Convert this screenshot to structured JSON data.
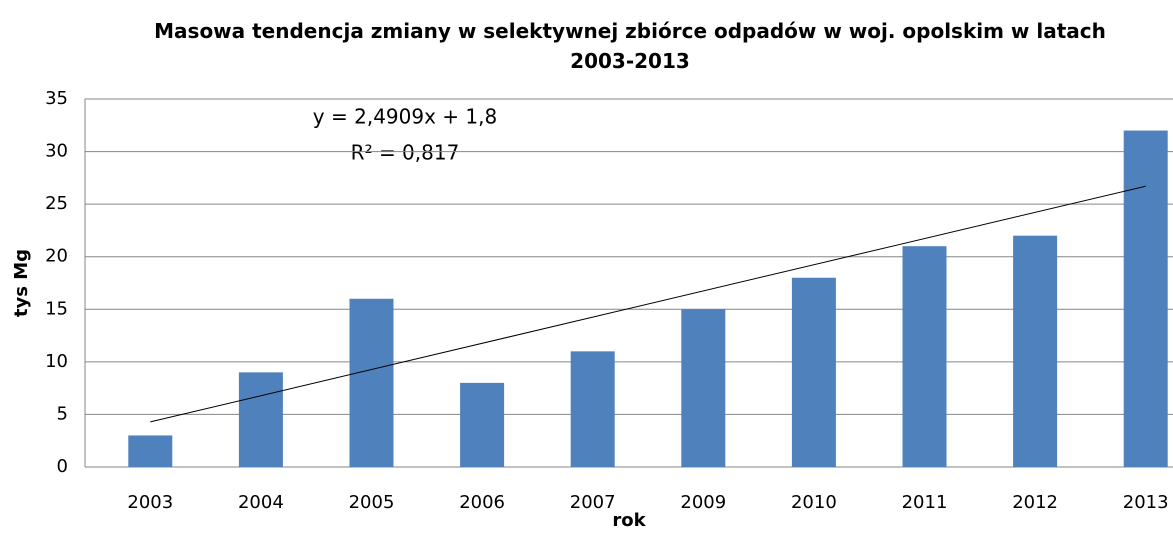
{
  "chart_data": {
    "type": "bar",
    "title": "Masowa tendencja zmiany w selektywnej zbiórce odpadów w woj. opolskim w latach 2003-2013",
    "xlabel": "rok",
    "ylabel": "tys Mg",
    "categories": [
      "2003",
      "2004",
      "2005",
      "2006",
      "2007",
      "2009",
      "2010",
      "2011",
      "2012",
      "2013"
    ],
    "values": [
      3,
      9,
      16,
      8,
      11,
      15,
      18,
      21,
      22,
      32
    ],
    "color": "#4f81bd",
    "ylim": [
      0,
      35
    ],
    "yticks": [
      0,
      5,
      10,
      15,
      20,
      25,
      30,
      35
    ],
    "grid": true,
    "trendline": {
      "slope": 2.4909,
      "intercept": 1.8,
      "label": "y = 2,4909x + 1,8",
      "r2_label": "R² = 0,817"
    }
  }
}
